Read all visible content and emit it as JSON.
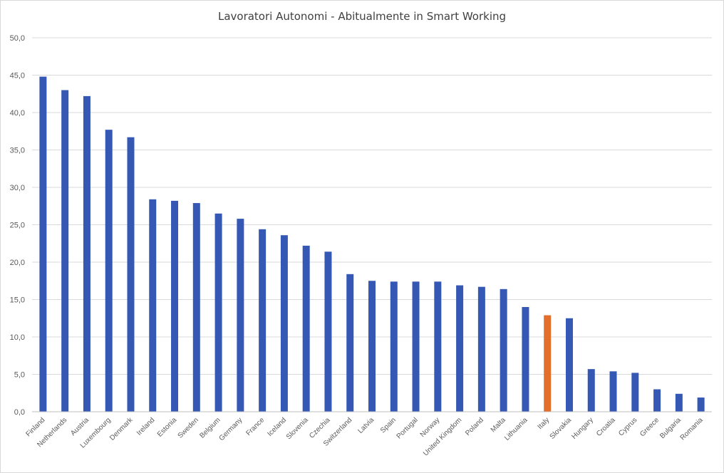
{
  "chart_data": {
    "type": "bar",
    "title": "Lavoratori Autonomi - Abitualmente in Smart Working",
    "xlabel": "",
    "ylabel": "",
    "ylim": [
      0,
      50
    ],
    "y_ticks": [
      "0,0",
      "5,0",
      "10,0",
      "15,0",
      "20,0",
      "25,0",
      "30,0",
      "35,0",
      "40,0",
      "45,0",
      "50,0"
    ],
    "grid": true,
    "legend": "none",
    "colors": {
      "default": "#3558b5",
      "highlight": "#e36d2b",
      "grid": "#d9d9d9",
      "axis": "#bfbfbf"
    },
    "highlight_category": "Italy",
    "categories": [
      "Finland",
      "Netherlands",
      "Austria",
      "Luxembourg",
      "Denmark",
      "Ireland",
      "Estonia",
      "Sweden",
      "Belgium",
      "Germany",
      "France",
      "Iceland",
      "Slovenia",
      "Czechia",
      "Switzerland",
      "Latvia",
      "Spain",
      "Portugal",
      "Norway",
      "United Kingdom",
      "Poland",
      "Malta",
      "Lithuania",
      "Italy",
      "Slovakia",
      "Hungary",
      "Croatia",
      "Cyprus",
      "Greece",
      "Bulgaria",
      "Romania"
    ],
    "values": [
      44.8,
      43.0,
      42.2,
      37.7,
      36.7,
      28.4,
      28.2,
      27.9,
      26.5,
      25.8,
      24.4,
      23.6,
      22.2,
      21.4,
      18.4,
      17.5,
      17.4,
      17.4,
      17.4,
      16.9,
      16.7,
      16.4,
      14.0,
      12.9,
      12.5,
      5.7,
      5.4,
      5.2,
      3.0,
      2.4,
      1.9
    ]
  }
}
